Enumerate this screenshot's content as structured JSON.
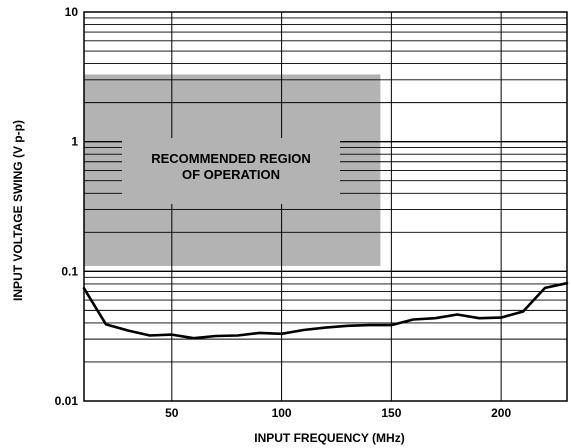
{
  "chart_data": {
    "type": "line",
    "xlabel": "INPUT FREQUENCY (MHz)",
    "ylabel": "INPUT VOLTAGE SWING (V p-p)",
    "xlim": [
      10,
      230
    ],
    "ylim": [
      0.01,
      10
    ],
    "y_scale": "log",
    "grid": true,
    "x_ticks": [
      {
        "value": 50,
        "label": "50"
      },
      {
        "value": 100,
        "label": "100"
      },
      {
        "value": 150,
        "label": "150"
      },
      {
        "value": 200,
        "label": "200"
      }
    ],
    "y_ticks": [
      {
        "value": 0.01,
        "label": "0.01"
      },
      {
        "value": 0.1,
        "label": "0.1"
      },
      {
        "value": 1,
        "label": "1"
      },
      {
        "value": 10,
        "label": "10"
      }
    ],
    "shaded_region": {
      "x": [
        10,
        145
      ],
      "y": [
        0.11,
        3.3
      ],
      "label_lines": [
        "RECOMMENDED REGION",
        "OF OPERATION"
      ],
      "color": "#b3b3b3"
    },
    "series": [
      {
        "color": "#000000",
        "x": [
          10,
          20,
          30,
          40,
          50,
          60,
          70,
          80,
          90,
          100,
          110,
          120,
          130,
          140,
          150,
          160,
          170,
          180,
          190,
          200,
          210,
          220,
          230
        ],
        "y": [
          0.074,
          0.039,
          0.035,
          0.032,
          0.0325,
          0.0305,
          0.0317,
          0.032,
          0.0335,
          0.033,
          0.0353,
          0.0368,
          0.038,
          0.0385,
          0.0385,
          0.0425,
          0.0435,
          0.0465,
          0.0435,
          0.044,
          0.049,
          0.0745,
          0.081
        ]
      }
    ]
  }
}
